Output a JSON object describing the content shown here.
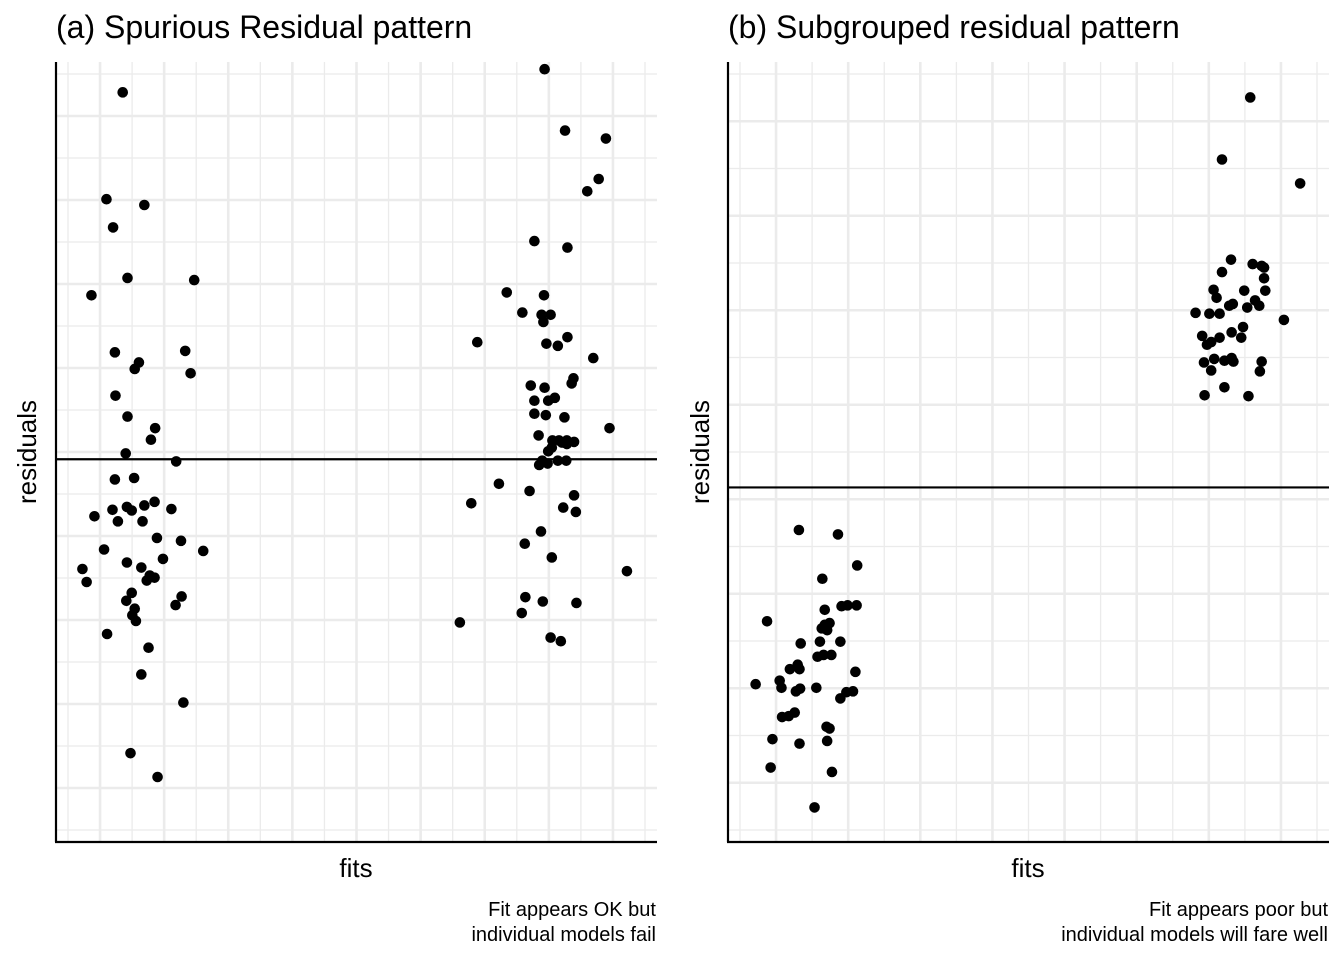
{
  "chart_data": [
    {
      "type": "scatter",
      "title": "(a) Spurious Residual pattern",
      "xlabel": "fits",
      "ylabel": "residuals",
      "caption": [
        "Fit appears OK but",
        "individual models fail"
      ],
      "reference_line": {
        "orientation": "horizontal",
        "y": 0
      },
      "xlim": [
        0,
        100
      ],
      "ylim": [
        -53,
        55
      ],
      "grid": true,
      "tick_labels": false,
      "point_color": "#000000",
      "series": [
        {
          "points": [
            [
              11.1,
              50.8
            ],
            [
              8.4,
              36.0
            ],
            [
              14.7,
              35.2
            ],
            [
              9.5,
              32.1
            ],
            [
              5.9,
              22.7
            ],
            [
              11.9,
              25.1
            ],
            [
              23.0,
              24.8
            ],
            [
              9.8,
              14.8
            ],
            [
              13.8,
              13.4
            ],
            [
              21.5,
              15.0
            ],
            [
              13.1,
              12.5
            ],
            [
              22.4,
              11.9
            ],
            [
              9.9,
              8.8
            ],
            [
              11.9,
              5.9
            ],
            [
              16.5,
              4.3
            ],
            [
              15.8,
              2.7
            ],
            [
              11.6,
              0.8
            ],
            [
              20.0,
              -0.3
            ],
            [
              9.8,
              -2.8
            ],
            [
              13.0,
              -2.6
            ],
            [
              16.4,
              -5.9
            ],
            [
              14.7,
              -6.4
            ],
            [
              11.8,
              -6.6
            ],
            [
              9.4,
              -7.0
            ],
            [
              12.6,
              -7.1
            ],
            [
              6.4,
              -7.9
            ],
            [
              19.2,
              -6.9
            ],
            [
              10.3,
              -8.6
            ],
            [
              14.4,
              -8.6
            ],
            [
              16.8,
              -10.9
            ],
            [
              20.8,
              -11.3
            ],
            [
              8.0,
              -12.5
            ],
            [
              24.5,
              -12.7
            ],
            [
              17.8,
              -13.8
            ],
            [
              11.8,
              -14.3
            ],
            [
              4.4,
              -15.2
            ],
            [
              14.2,
              -15.0
            ],
            [
              15.6,
              -16.1
            ],
            [
              5.1,
              -17.0
            ],
            [
              15.1,
              -16.8
            ],
            [
              16.4,
              -16.4
            ],
            [
              12.6,
              -18.5
            ],
            [
              20.9,
              -19.0
            ],
            [
              11.7,
              -19.6
            ],
            [
              19.9,
              -20.2
            ],
            [
              13.1,
              -20.7
            ],
            [
              12.7,
              -21.6
            ],
            [
              13.3,
              -22.4
            ],
            [
              8.5,
              -24.2
            ],
            [
              15.4,
              -26.1
            ],
            [
              14.2,
              -29.8
            ],
            [
              21.2,
              -33.7
            ],
            [
              12.4,
              -40.7
            ],
            [
              16.9,
              -44.0
            ],
            [
              81.3,
              54.0
            ],
            [
              84.7,
              45.5
            ],
            [
              91.5,
              44.4
            ],
            [
              90.3,
              38.8
            ],
            [
              88.4,
              37.1
            ],
            [
              79.6,
              30.2
            ],
            [
              85.1,
              29.3
            ],
            [
              75.0,
              23.1
            ],
            [
              81.2,
              22.7
            ],
            [
              77.6,
              20.3
            ],
            [
              80.8,
              20.0
            ],
            [
              82.3,
              20.0
            ],
            [
              81.1,
              19.0
            ],
            [
              85.1,
              16.9
            ],
            [
              70.1,
              16.2
            ],
            [
              81.6,
              16.0
            ],
            [
              83.5,
              15.7
            ],
            [
              89.4,
              14.0
            ],
            [
              86.1,
              11.2
            ],
            [
              79.0,
              10.2
            ],
            [
              81.3,
              9.9
            ],
            [
              85.8,
              10.5
            ],
            [
              83.0,
              8.5
            ],
            [
              79.6,
              8.1
            ],
            [
              81.9,
              8.1
            ],
            [
              79.6,
              6.3
            ],
            [
              81.5,
              6.1
            ],
            [
              84.6,
              5.8
            ],
            [
              92.1,
              4.3
            ],
            [
              80.3,
              3.3
            ],
            [
              82.6,
              2.6
            ],
            [
              83.7,
              2.6
            ],
            [
              85.0,
              2.6
            ],
            [
              86.2,
              2.4
            ],
            [
              84.2,
              2.3
            ],
            [
              85.0,
              2.1
            ],
            [
              82.5,
              1.6
            ],
            [
              81.9,
              1.1
            ],
            [
              80.9,
              -0.2
            ],
            [
              83.5,
              -0.2
            ],
            [
              84.9,
              -0.2
            ],
            [
              81.8,
              -0.6
            ],
            [
              80.4,
              -0.8
            ],
            [
              73.7,
              -3.4
            ],
            [
              78.8,
              -4.4
            ],
            [
              86.2,
              -5.0
            ],
            [
              69.1,
              -6.1
            ],
            [
              84.4,
              -6.7
            ],
            [
              86.5,
              -7.3
            ],
            [
              80.7,
              -10.0
            ],
            [
              78.0,
              -11.7
            ],
            [
              82.5,
              -13.6
            ],
            [
              95.0,
              -15.5
            ],
            [
              78.1,
              -19.1
            ],
            [
              81.0,
              -19.7
            ],
            [
              86.6,
              -19.9
            ],
            [
              77.5,
              -21.3
            ],
            [
              67.2,
              -22.6
            ],
            [
              82.3,
              -24.7
            ],
            [
              84.0,
              -25.2
            ]
          ]
        }
      ]
    },
    {
      "type": "scatter",
      "title": "(b) Subgrouped residual pattern",
      "xlabel": "fits",
      "ylabel": "residuals",
      "caption": [
        "Fit appears poor but",
        "individual models will fare well"
      ],
      "reference_line": {
        "orientation": "horizontal",
        "y": 0
      },
      "xlim": [
        0,
        100
      ],
      "ylim": [
        -40,
        48
      ],
      "grid": true,
      "tick_labels": false,
      "point_color": "#000000",
      "series": [
        {
          "points": [
            [
              11.8,
              -4.8
            ],
            [
              18.3,
              -5.3
            ],
            [
              21.5,
              -8.8
            ],
            [
              15.7,
              -10.3
            ],
            [
              21.4,
              -13.3
            ],
            [
              19.9,
              -13.3
            ],
            [
              18.9,
              -13.4
            ],
            [
              16.1,
              -13.8
            ],
            [
              16.9,
              -15.3
            ],
            [
              16.1,
              -15.5
            ],
            [
              6.5,
              -15.1
            ],
            [
              15.6,
              -15.9
            ],
            [
              16.5,
              -16.1
            ],
            [
              15.3,
              -17.4
            ],
            [
              12.1,
              -17.6
            ],
            [
              18.7,
              -17.4
            ],
            [
              15.9,
              -18.9
            ],
            [
              17.2,
              -18.9
            ],
            [
              14.9,
              -19.1
            ],
            [
              11.6,
              -20.0
            ],
            [
              10.3,
              -20.5
            ],
            [
              11.9,
              -20.5
            ],
            [
              21.2,
              -20.8
            ],
            [
              8.6,
              -21.8
            ],
            [
              4.6,
              -22.2
            ],
            [
              8.9,
              -22.6
            ],
            [
              12.0,
              -22.7
            ],
            [
              14.7,
              -22.6
            ],
            [
              11.3,
              -23.0
            ],
            [
              19.7,
              -23.1
            ],
            [
              20.8,
              -23.0
            ],
            [
              18.7,
              -23.8
            ],
            [
              11.1,
              -25.4
            ],
            [
              10.1,
              -25.8
            ],
            [
              9.0,
              -25.9
            ],
            [
              16.4,
              -27.0
            ],
            [
              16.9,
              -27.2
            ],
            [
              7.4,
              -28.4
            ],
            [
              16.5,
              -28.6
            ],
            [
              11.9,
              -28.9
            ],
            [
              7.1,
              -31.6
            ],
            [
              17.3,
              -32.1
            ],
            [
              14.4,
              -36.1
            ],
            [
              86.9,
              44.0
            ],
            [
              82.2,
              37.0
            ],
            [
              95.2,
              34.3
            ],
            [
              83.7,
              25.7
            ],
            [
              87.3,
              25.2
            ],
            [
              88.8,
              25.0
            ],
            [
              89.2,
              24.8
            ],
            [
              82.2,
              24.3
            ],
            [
              89.2,
              23.6
            ],
            [
              80.8,
              22.3
            ],
            [
              85.9,
              22.2
            ],
            [
              89.4,
              22.2
            ],
            [
              81.3,
              21.4
            ],
            [
              83.4,
              20.5
            ],
            [
              86.4,
              20.3
            ],
            [
              87.7,
              21.1
            ],
            [
              84.0,
              20.7
            ],
            [
              88.4,
              20.5
            ],
            [
              77.8,
              19.7
            ],
            [
              80.1,
              19.6
            ],
            [
              81.8,
              19.6
            ],
            [
              92.5,
              18.9
            ],
            [
              85.7,
              18.1
            ],
            [
              83.8,
              17.5
            ],
            [
              78.9,
              17.1
            ],
            [
              81.8,
              16.9
            ],
            [
              85.4,
              16.9
            ],
            [
              80.4,
              16.4
            ],
            [
              79.7,
              16.1
            ],
            [
              80.9,
              14.5
            ],
            [
              79.2,
              14.1
            ],
            [
              82.6,
              14.3
            ],
            [
              84.1,
              14.2
            ],
            [
              83.8,
              14.6
            ],
            [
              88.8,
              14.2
            ],
            [
              80.4,
              13.2
            ],
            [
              88.5,
              13.1
            ],
            [
              82.6,
              11.3
            ],
            [
              79.3,
              10.4
            ],
            [
              86.6,
              10.3
            ]
          ]
        }
      ]
    }
  ]
}
